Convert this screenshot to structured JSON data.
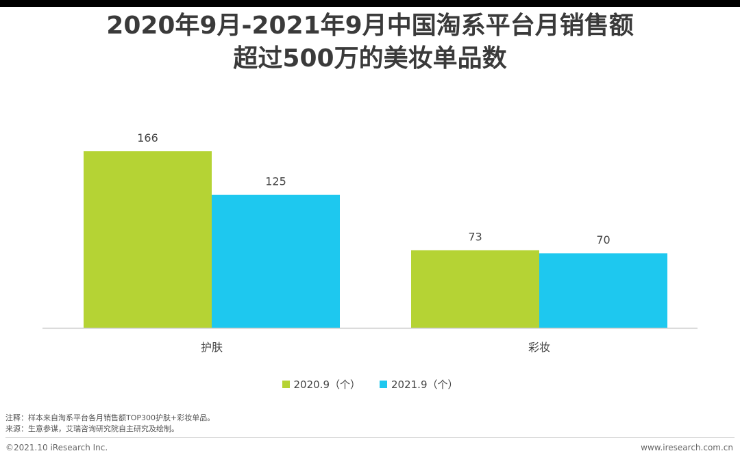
{
  "title": {
    "line1": "2020年9月-2021年9月中国淘系平台月销售额",
    "line2": "超过500万的美妆单品数"
  },
  "chart_data": {
    "type": "bar",
    "title": "2020年9月-2021年9月中国淘系平台月销售额超过500万的美妆单品数",
    "categories": [
      "护肤",
      "彩妆"
    ],
    "series": [
      {
        "name": "2020.9（个）",
        "values": [
          166,
          73
        ],
        "color": "#b5d334"
      },
      {
        "name": "2021.9（个）",
        "values": [
          125,
          70
        ],
        "color": "#1ec8ef"
      }
    ],
    "xlabel": "",
    "ylabel": "",
    "ylim": [
      0,
      166
    ],
    "grid": false,
    "legend": "bottom-center"
  },
  "notes": {
    "note": "注释：样本来自淘系平台各月销售额TOP300护肤+彩妆单品。",
    "source": "来源：生意参谋，艾瑞咨询研究院自主研究及绘制。"
  },
  "footer": {
    "copyright": "©2021.10 iResearch Inc.",
    "website": "www.iresearch.com.cn"
  },
  "colors": {
    "axis": "#c8c8c8",
    "label": "#444444"
  }
}
